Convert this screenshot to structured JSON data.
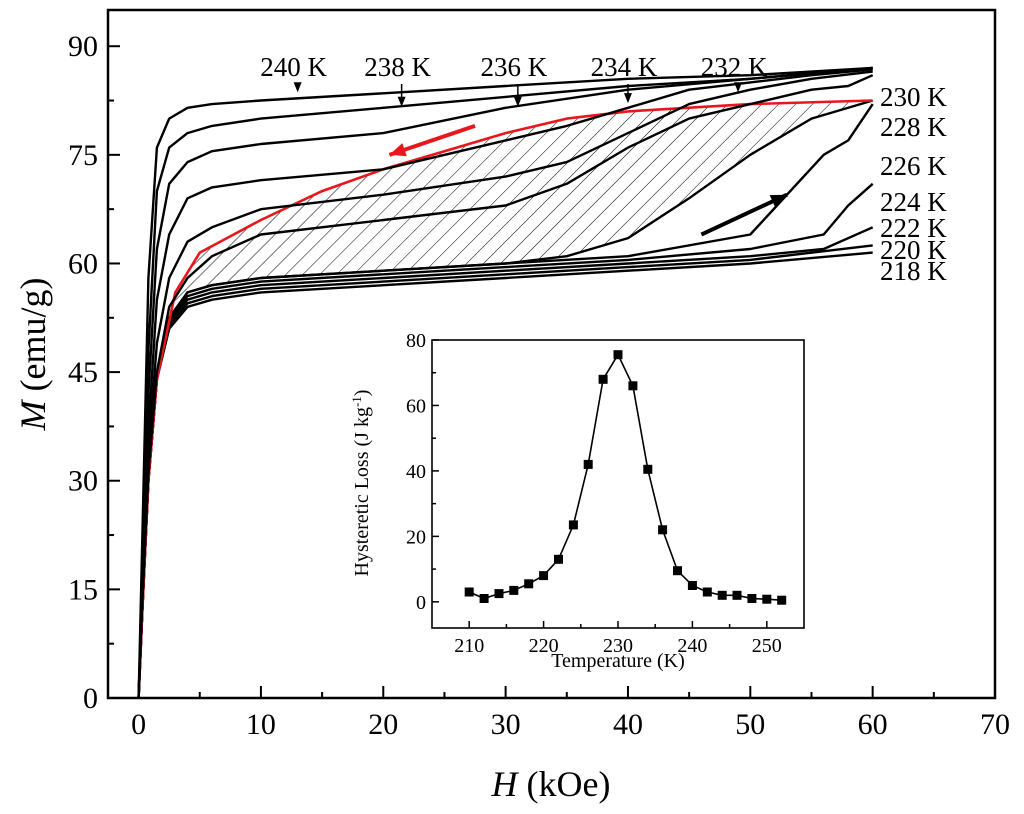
{
  "chart_data": [
    {
      "type": "line",
      "title": "",
      "xlabel_italic": "H",
      "xlabel_unit": " (kOe)",
      "ylabel_italic": "M",
      "ylabel_unit": " (emu/g)",
      "xlim": [
        -2.5,
        70
      ],
      "ylim": [
        0,
        95
      ],
      "xticks": [
        0,
        10,
        20,
        30,
        40,
        50,
        60,
        70
      ],
      "yticks": [
        0,
        15,
        30,
        45,
        60,
        75,
        90
      ],
      "grid": false,
      "series": [
        {
          "name": "218 K",
          "x": [
            0,
            0.3,
            0.8,
            1.5,
            2.5,
            4,
            6,
            10,
            20,
            30,
            40,
            50,
            60
          ],
          "y": [
            0,
            12,
            30,
            44,
            51,
            54,
            55,
            56,
            57,
            58,
            59,
            60,
            61.5
          ]
        },
        {
          "name": "220 K",
          "x": [
            0,
            0.3,
            0.8,
            1.5,
            2.5,
            4,
            6,
            10,
            20,
            30,
            40,
            50,
            60
          ],
          "y": [
            0,
            12,
            30,
            44,
            51.5,
            54.5,
            55.5,
            56.5,
            57.5,
            58.5,
            59.5,
            60.5,
            62.5
          ]
        },
        {
          "name": "222 K",
          "x": [
            0,
            0.3,
            0.8,
            1.5,
            2.5,
            4,
            6,
            10,
            20,
            30,
            40,
            50,
            56,
            60
          ],
          "y": [
            0,
            12,
            30,
            44,
            52,
            55,
            56,
            57,
            58,
            59,
            60,
            61,
            62,
            65
          ]
        },
        {
          "name": "224 K",
          "x": [
            0,
            0.3,
            0.8,
            1.5,
            2.5,
            4,
            6,
            10,
            20,
            30,
            40,
            50,
            56,
            58,
            60
          ],
          "y": [
            0,
            12,
            30,
            44,
            52,
            55.5,
            56.5,
            57.5,
            58.5,
            59.5,
            60.5,
            62,
            64,
            68,
            71
          ]
        },
        {
          "name": "226 K",
          "x": [
            0,
            0.3,
            0.8,
            1.5,
            2.5,
            4,
            6,
            10,
            20,
            30,
            40,
            50,
            56,
            58,
            60
          ],
          "y": [
            0,
            12,
            30,
            44,
            52.5,
            56,
            57,
            58,
            59,
            60,
            61,
            64,
            75,
            77,
            82
          ]
        },
        {
          "name": "228 K",
          "x": [
            0,
            0.3,
            0.8,
            1.5,
            2.5,
            4,
            6,
            10,
            20,
            30,
            35,
            40,
            45,
            50,
            55,
            60
          ],
          "y": [
            0,
            12,
            30,
            44,
            52.5,
            56,
            57,
            58,
            59,
            60,
            61,
            63.5,
            69,
            75,
            80,
            82.5
          ]
        },
        {
          "name": "228 K decreasing",
          "x": [
            60,
            50,
            40,
            35,
            30,
            25,
            20,
            15,
            10,
            5,
            3,
            1.5,
            0.8,
            0.3,
            0
          ],
          "y": [
            82.5,
            82,
            81,
            80,
            78,
            75.5,
            73,
            70,
            66,
            61.5,
            56,
            44,
            30,
            12,
            0
          ]
        },
        {
          "name": "230 K",
          "x": [
            0,
            0.3,
            0.8,
            1.5,
            2.5,
            4,
            6,
            10,
            20,
            30,
            35,
            40,
            45,
            50,
            55,
            58,
            60
          ],
          "y": [
            0,
            13,
            31,
            45,
            54,
            58,
            61,
            64,
            66,
            68,
            71,
            76,
            80,
            82,
            84,
            84.5,
            86
          ]
        },
        {
          "name": "232 K",
          "x": [
            0,
            0.3,
            0.8,
            1.5,
            2.5,
            4,
            6,
            10,
            20,
            30,
            35,
            40,
            45,
            50,
            55,
            60
          ],
          "y": [
            0,
            14,
            34,
            49,
            58,
            63,
            65,
            67.5,
            69.5,
            72,
            74,
            78,
            82,
            84,
            85.5,
            86.5
          ]
        },
        {
          "name": "234 K",
          "x": [
            0,
            0.3,
            0.8,
            1.5,
            2.5,
            4,
            6,
            10,
            20,
            30,
            35,
            40,
            45,
            50,
            55,
            60
          ],
          "y": [
            0,
            15,
            37,
            55,
            64,
            69,
            70.5,
            71.5,
            73,
            77,
            79,
            81.5,
            84,
            85,
            86,
            86.8
          ]
        },
        {
          "name": "236 K",
          "x": [
            0,
            0.3,
            0.8,
            1.5,
            2.5,
            4,
            6,
            10,
            20,
            30,
            40,
            50,
            60
          ],
          "y": [
            0,
            16,
            42,
            62,
            71,
            74,
            75.5,
            76.5,
            78,
            81.5,
            84,
            85.5,
            87
          ]
        },
        {
          "name": "238 K",
          "x": [
            0,
            0.3,
            0.8,
            1.5,
            2.5,
            4,
            6,
            10,
            20,
            30,
            40,
            50,
            60
          ],
          "y": [
            0,
            18,
            48,
            70,
            76,
            78,
            79,
            80,
            81.5,
            83,
            84.5,
            85.5,
            87
          ]
        },
        {
          "name": "240 K",
          "x": [
            0,
            0.3,
            0.8,
            1.5,
            2.5,
            4,
            6,
            10,
            20,
            30,
            40,
            50,
            60
          ],
          "y": [
            0,
            22,
            58,
            76,
            80,
            81.5,
            82,
            82.5,
            83.5,
            84.5,
            85.5,
            86,
            87
          ]
        }
      ],
      "shaded_region": "hysteresis loop of 228 K (hatched)",
      "right_labels": [
        "230 K",
        "228 K",
        "226 K",
        "224 K",
        "222 K",
        "220 K",
        "218 K"
      ],
      "top_labels": [
        {
          "text": "240 K",
          "x": 13,
          "y": 83.5
        },
        {
          "text": "238 K",
          "x": 21.5,
          "y": 81.5
        },
        {
          "text": "236 K",
          "x": 31,
          "y": 81.5
        },
        {
          "text": "234 K",
          "x": 40,
          "y": 82
        },
        {
          "text": "232 K",
          "x": 49,
          "y": 83.5
        }
      ],
      "arrows": [
        {
          "direction": "decreasing",
          "color": "#e8171c",
          "from": [
            27.5,
            79
          ],
          "to": [
            20.5,
            75
          ]
        },
        {
          "direction": "increasing",
          "color": "#000000",
          "from": [
            46,
            64
          ],
          "to": [
            53,
            69.5
          ]
        }
      ]
    },
    {
      "type": "line",
      "title": "",
      "xlabel": "Temperature (K)",
      "ylabel": "Hysteretic Loss (J kg",
      "ylabel_sup": "-1",
      "ylabel_close": ")",
      "xlim": [
        205,
        255
      ],
      "ylim": [
        -8,
        80
      ],
      "xticks": [
        210,
        220,
        230,
        240,
        250
      ],
      "yticks": [
        0,
        20,
        40,
        60,
        80
      ],
      "grid": false,
      "marker": "square",
      "x": [
        210,
        212,
        214,
        216,
        218,
        220,
        222,
        224,
        226,
        228,
        230,
        232,
        234,
        236,
        238,
        240,
        242,
        244,
        246,
        248,
        250,
        252
      ],
      "values": [
        3,
        1,
        2.5,
        3.5,
        5.5,
        8,
        13,
        23.5,
        42,
        68,
        75.5,
        66,
        40.5,
        22,
        9.5,
        5,
        3,
        2,
        2,
        1,
        0.8,
        0.5
      ]
    }
  ]
}
